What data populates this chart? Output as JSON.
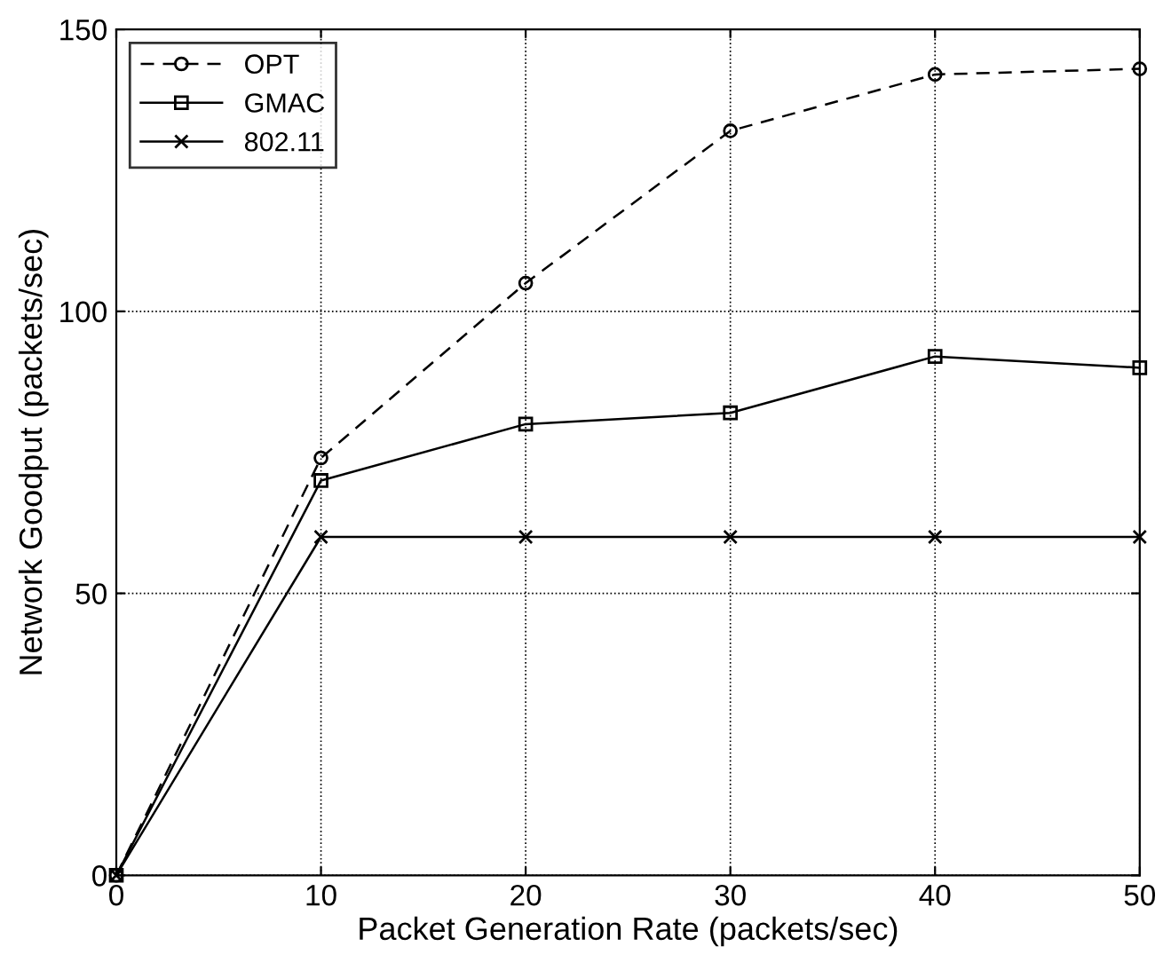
{
  "chart_data": {
    "type": "line",
    "xlabel": "Packet Generation Rate (packets/sec)",
    "ylabel": "Network Goodput (packets/sec)",
    "x": [
      0,
      10,
      20,
      30,
      40,
      50
    ],
    "series": [
      {
        "name": "OPT",
        "color": "#000000",
        "values": [
          0,
          74,
          105,
          132,
          142,
          143
        ],
        "marker": "circle",
        "line_style": "dashed"
      },
      {
        "name": "GMAC",
        "color": "#000000",
        "values": [
          0,
          70,
          80,
          82,
          92,
          90
        ],
        "marker": "square",
        "line_style": "solid"
      },
      {
        "name": "802.11",
        "color": "#000000",
        "values": [
          0,
          60,
          60,
          60,
          60,
          60
        ],
        "marker": "cross",
        "line_style": "solid"
      }
    ],
    "xlim": [
      0,
      50
    ],
    "xticks": [
      0,
      10,
      20,
      30,
      40,
      50
    ],
    "ylim": [
      0,
      150
    ],
    "yticks": [
      0,
      50,
      100,
      150
    ],
    "grid": true,
    "legend": "top left"
  }
}
